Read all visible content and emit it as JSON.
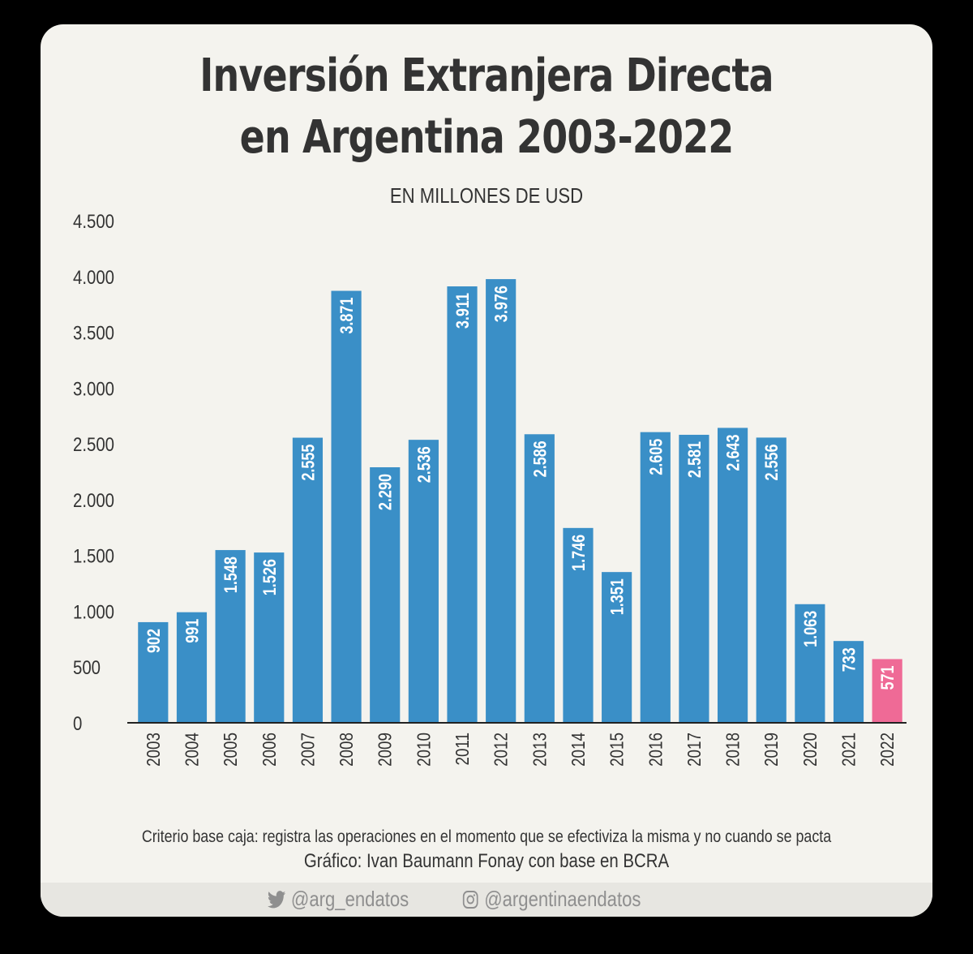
{
  "title_line1": "Inversión Extranjera Directa",
  "title_line2": "en Argentina 2003-2022",
  "subtitle": "EN MILLONES DE USD",
  "note": "Criterio base caja: registra las operaciones en el momento que se efectiviza la misma y no cuando se pacta",
  "credit": "Gráfico: Ivan Baumann Fonay con base en BCRA",
  "social": {
    "twitter_icon": "twitter-bird-icon",
    "twitter": "@arg_endatos",
    "instagram_icon": "instagram-icon",
    "instagram": "@argentinaendatos"
  },
  "colors": {
    "bar": "#3a8fc7",
    "highlight_bar": "#ef6a96",
    "text": "#333333",
    "background": "#f4f3ee"
  },
  "chart_data": {
    "type": "bar",
    "title": "Inversión Extranjera Directa en Argentina 2003-2022",
    "subtitle": "EN MILLONES DE USD",
    "categories": [
      "2003",
      "2004",
      "2005",
      "2006",
      "2007",
      "2008",
      "2009",
      "2010",
      "2011",
      "2012",
      "2013",
      "2014",
      "2015",
      "2016",
      "2017",
      "2018",
      "2019",
      "2020",
      "2021",
      "2022"
    ],
    "values": [
      902,
      991,
      1548,
      1526,
      2555,
      3871,
      2290,
      2536,
      3911,
      3976,
      2586,
      1746,
      1351,
      2605,
      2581,
      2643,
      2556,
      1063,
      733,
      571
    ],
    "value_labels": [
      "902",
      "991",
      "1.548",
      "1.526",
      "2.555",
      "3.871",
      "2.290",
      "2.536",
      "3.911",
      "3.976",
      "2.586",
      "1.746",
      "1.351",
      "2.605",
      "2.581",
      "2.643",
      "2.556",
      "1.063",
      "733",
      "571"
    ],
    "highlight_category": "2022",
    "ylim": [
      0,
      4500
    ],
    "yticks": [
      0,
      500,
      1000,
      1500,
      2000,
      2500,
      3000,
      3500,
      4000,
      4500
    ],
    "ytick_labels": [
      "0",
      "500",
      "1.000",
      "1.500",
      "2.000",
      "2.500",
      "3.000",
      "3.500",
      "4.000",
      "4.500"
    ],
    "xlabel": "",
    "ylabel": "",
    "grid": false,
    "legend": "none"
  }
}
